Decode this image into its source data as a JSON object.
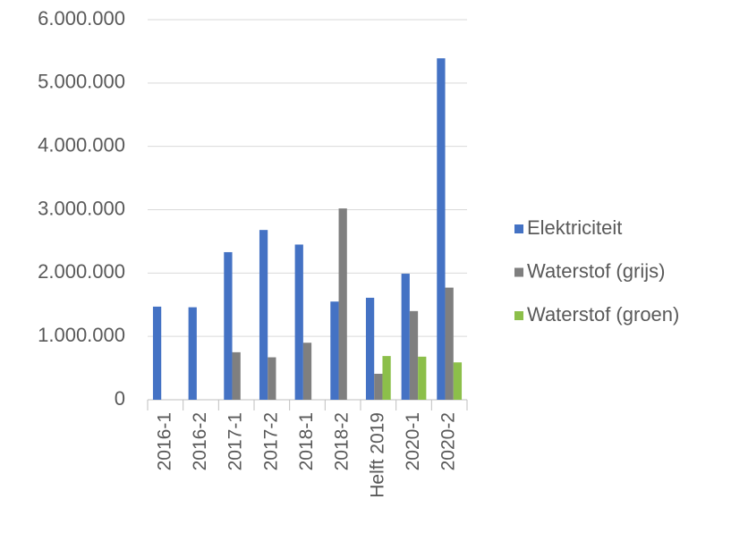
{
  "chart_data": {
    "type": "bar",
    "categories": [
      "2016-1",
      "2016-2",
      "2017-1",
      "2017-2",
      "2018-1",
      "2018-2",
      "Helft 2019",
      "2020-1",
      "2020-2"
    ],
    "series": [
      {
        "name": "Elektriciteit",
        "color": "#4472c4",
        "values": [
          1470000,
          1460000,
          2330000,
          2680000,
          2450000,
          1550000,
          1610000,
          1990000,
          5390000
        ]
      },
      {
        "name": "Waterstof (grijs)",
        "color": "#7f7f7f",
        "values": [
          null,
          null,
          750000,
          670000,
          900000,
          3020000,
          410000,
          1400000,
          1770000
        ]
      },
      {
        "name": "Waterstof (groen)",
        "color": "#8cbf4a",
        "values": [
          null,
          null,
          null,
          null,
          null,
          null,
          690000,
          680000,
          590000
        ]
      }
    ],
    "ylim": [
      0,
      6000000
    ],
    "yticks": [
      0,
      {
        "value": 1000000,
        "label": "1.000.000"
      },
      {
        "value": 2000000,
        "label": "2.000.000"
      },
      {
        "value": 3000000,
        "label": "3.000.000"
      },
      {
        "value": 4000000,
        "label": "4.000.000"
      },
      {
        "value": 5000000,
        "label": "5.000.000"
      },
      {
        "value": 6000000,
        "label": "6.000.000"
      }
    ],
    "grid": true,
    "legend": "right"
  }
}
